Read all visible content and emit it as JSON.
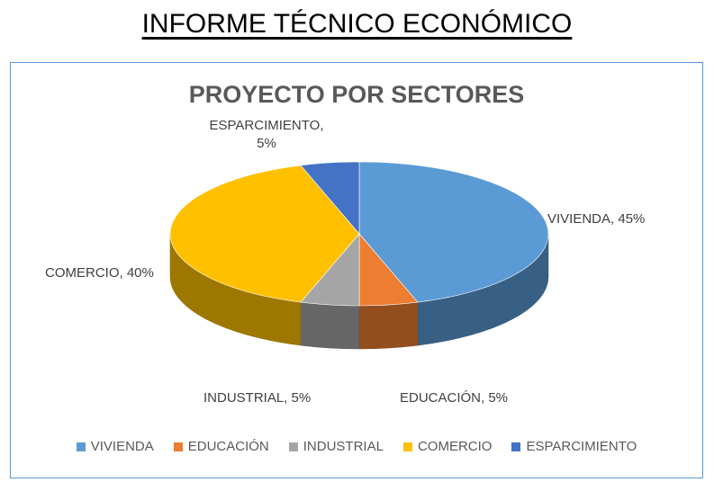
{
  "report": {
    "title": "INFORME TÉCNICO ECONÓMICO"
  },
  "chart_data": {
    "type": "pie",
    "title": "PROYECTO POR SECTORES",
    "categories": [
      "VIVIENDA",
      "EDUCACIÓN",
      "INDUSTRIAL",
      "COMERCIO",
      "ESPARCIMIENTO"
    ],
    "values": [
      45,
      5,
      5,
      40,
      5
    ],
    "data_labels": [
      "VIVIENDA, 45%",
      "EDUCACIÓN, 5%",
      "INDUSTRIAL, 5%",
      "COMERCIO, 40%",
      "ESPARCIMIENTO, 5%"
    ],
    "colors": [
      "#5b9bd5",
      "#ed7d31",
      "#a5a5a5",
      "#ffc000",
      "#4472c4"
    ],
    "style": "3d",
    "legend_position": "bottom"
  }
}
